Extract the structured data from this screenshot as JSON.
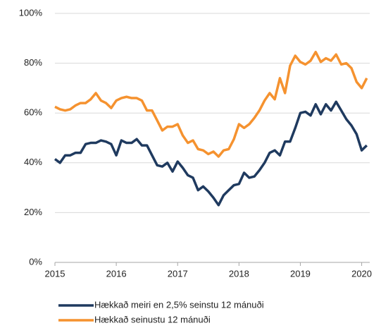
{
  "chart_data": {
    "type": "line",
    "x": [
      2015,
      2015.083,
      2015.167,
      2015.25,
      2015.333,
      2015.417,
      2015.5,
      2015.583,
      2015.667,
      2015.75,
      2015.833,
      2015.917,
      2016,
      2016.083,
      2016.167,
      2016.25,
      2016.333,
      2016.417,
      2016.5,
      2016.583,
      2016.667,
      2016.75,
      2016.833,
      2016.917,
      2017,
      2017.083,
      2017.167,
      2017.25,
      2017.333,
      2017.417,
      2017.5,
      2017.583,
      2017.667,
      2017.75,
      2017.833,
      2017.917,
      2018,
      2018.083,
      2018.167,
      2018.25,
      2018.333,
      2018.417,
      2018.5,
      2018.583,
      2018.667,
      2018.75,
      2018.833,
      2018.917,
      2019,
      2019.083,
      2019.167,
      2019.25,
      2019.333,
      2019.417,
      2019.5,
      2019.583,
      2019.667,
      2019.75,
      2019.833,
      2019.917,
      2020,
      2020.083
    ],
    "series": [
      {
        "name": "Hækkað meiri en 2,5% seinstu 12 mánuði",
        "color": "#1f3a5f",
        "values": [
          41.5,
          40,
          43,
          43,
          44,
          44,
          47.5,
          48,
          48,
          49,
          48.5,
          47.5,
          43,
          49,
          48,
          48,
          49.5,
          47,
          47,
          43,
          39,
          38.5,
          40,
          36.5,
          40.5,
          38,
          35,
          34,
          29,
          30.5,
          28.5,
          26,
          23,
          27,
          29,
          31,
          31.5,
          36,
          34,
          34.5,
          37,
          40,
          44,
          45,
          43,
          48.5,
          48.5,
          54,
          60,
          60.5,
          59,
          63.5,
          59.5,
          63.5,
          61,
          64.5,
          61,
          57.5,
          55,
          51.5,
          45,
          47
        ]
      },
      {
        "name": "Hækkað seinustu 12 mánuði",
        "color": "#f5922f",
        "values": [
          62.5,
          61.5,
          61,
          61.5,
          63,
          64,
          64,
          65.5,
          68,
          65,
          64,
          62,
          65,
          66,
          66.5,
          66,
          66,
          65,
          61,
          61,
          57,
          53,
          54.5,
          54.5,
          55.5,
          51,
          48,
          49,
          45.5,
          45,
          43.5,
          44.5,
          42.5,
          45,
          45.5,
          49.5,
          55.5,
          54,
          55.5,
          58,
          61,
          65,
          68,
          65.5,
          74,
          68,
          79,
          83,
          80.5,
          79.5,
          81,
          84.5,
          80.5,
          82,
          81,
          83.5,
          79.5,
          80,
          78,
          72.5,
          70,
          74
        ]
      }
    ],
    "xlim": [
      2015,
      2020.083
    ],
    "xticks": [
      2015,
      2016,
      2017,
      2018,
      2019,
      2020
    ],
    "ylim": [
      0,
      100
    ],
    "yticks": [
      {
        "value": 0,
        "label": "0%"
      },
      {
        "value": 20,
        "label": "20%"
      },
      {
        "value": 40,
        "label": "40%"
      },
      {
        "value": 60,
        "label": "60%"
      },
      {
        "value": 80,
        "label": "80%"
      },
      {
        "value": 100,
        "label": "100%"
      }
    ],
    "grid": true
  }
}
